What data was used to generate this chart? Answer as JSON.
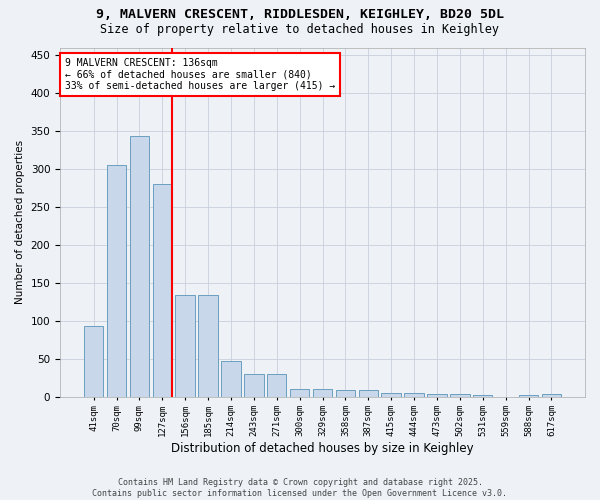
{
  "title_line1": "9, MALVERN CRESCENT, RIDDLESDEN, KEIGHLEY, BD20 5DL",
  "title_line2": "Size of property relative to detached houses in Keighley",
  "xlabel": "Distribution of detached houses by size in Keighley",
  "ylabel": "Number of detached properties",
  "categories": [
    "41sqm",
    "70sqm",
    "99sqm",
    "127sqm",
    "156sqm",
    "185sqm",
    "214sqm",
    "243sqm",
    "271sqm",
    "300sqm",
    "329sqm",
    "358sqm",
    "387sqm",
    "415sqm",
    "444sqm",
    "473sqm",
    "502sqm",
    "531sqm",
    "559sqm",
    "588sqm",
    "617sqm"
  ],
  "values": [
    93,
    305,
    343,
    280,
    134,
    134,
    47,
    30,
    30,
    10,
    10,
    8,
    8,
    5,
    5,
    3,
    3,
    2,
    0,
    2,
    3
  ],
  "bar_color": "#c8d8ea",
  "bar_edgecolor": "#6a9ec0",
  "vline_color": "red",
  "vline_index": 3,
  "annotation_text": "9 MALVERN CRESCENT: 136sqm\n← 66% of detached houses are smaller (840)\n33% of semi-detached houses are larger (415) →",
  "box_edgecolor": "red",
  "ylim": [
    0,
    460
  ],
  "yticks": [
    0,
    50,
    100,
    150,
    200,
    250,
    300,
    350,
    400,
    450
  ],
  "footer": "Contains HM Land Registry data © Crown copyright and database right 2025.\nContains public sector information licensed under the Open Government Licence v3.0.",
  "bg_color": "#eef2f7",
  "plot_bg_color": "#eef2f7",
  "grid_color": "#c8d0dc"
}
